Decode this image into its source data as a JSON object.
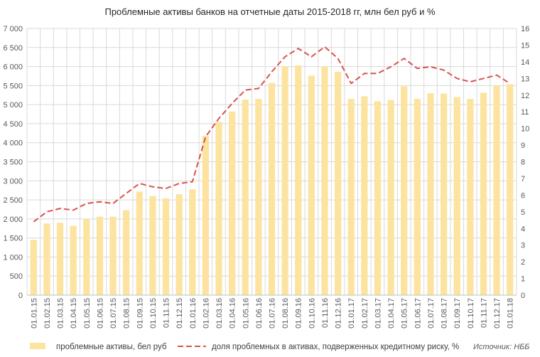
{
  "chart_data": {
    "type": "bar",
    "title": "Проблемные активы банков на отчетные даты 2015-2018 гг, млн бел руб и %",
    "categories": [
      "01.01.15",
      "01.02.15",
      "01.03.15",
      "01.04.15",
      "01.05.15",
      "01.06.15",
      "01.07.15",
      "01.08.15",
      "01.09.15",
      "01.10.15",
      "01.11.15",
      "01.12.15",
      "01.01.16",
      "01.02.16",
      "01.03.16",
      "01.04.16",
      "01.05.16",
      "01.06.16",
      "01.07.16",
      "01.08.16",
      "01.09.16",
      "01.10.16",
      "01.11.16",
      "01.12.16",
      "01.01.17",
      "01.02.17",
      "01.03.17",
      "01.04.17",
      "01.05.17",
      "01.06.17",
      "01.07.17",
      "01.08.17",
      "01.09.17",
      "01.10.17",
      "01.11.17",
      "01.12.17",
      "01.01.18"
    ],
    "y_left": {
      "ylim": [
        0,
        7000
      ],
      "ticks": [
        "0",
        "500",
        "1 000",
        "1 500",
        "2 000",
        "2 500",
        "3 000",
        "3 500",
        "4 000",
        "4 500",
        "5 000",
        "5 500",
        "6 000",
        "6 500",
        "7 000"
      ]
    },
    "y_right": {
      "ylim": [
        0,
        16
      ],
      "ticks": [
        "0",
        "1",
        "2",
        "3",
        "4",
        "5",
        "6",
        "7",
        "8",
        "9",
        "10",
        "11",
        "12",
        "13",
        "14",
        "15",
        "16"
      ]
    },
    "grid": true,
    "legend_position": "bottom",
    "series": [
      {
        "name": "проблемные активы, бел руб",
        "type": "bar",
        "axis": "left",
        "color": "#FCE4A0",
        "values": [
          1450,
          1880,
          1900,
          1820,
          2000,
          2060,
          2060,
          2230,
          2720,
          2600,
          2540,
          2650,
          2780,
          4180,
          4550,
          4820,
          5130,
          5150,
          5570,
          6010,
          6030,
          5760,
          6010,
          5860,
          5150,
          5220,
          5090,
          5120,
          5480,
          5150,
          5300,
          5290,
          5200,
          5150,
          5310,
          5500,
          5540
        ]
      },
      {
        "name": "доля проблемных в активах, подверженных кредитному риску, %",
        "type": "line",
        "axis": "right",
        "color": "#D9534F",
        "dashed": true,
        "values": [
          4.4,
          5.0,
          5.2,
          5.1,
          5.5,
          5.6,
          5.5,
          6.1,
          6.7,
          6.5,
          6.4,
          6.7,
          6.8,
          9.5,
          10.6,
          11.5,
          12.3,
          12.4,
          13.4,
          14.3,
          14.8,
          14.3,
          14.9,
          14.2,
          12.7,
          13.3,
          13.3,
          13.7,
          14.2,
          13.6,
          13.7,
          13.5,
          13.0,
          12.8,
          13.0,
          13.2,
          12.7
        ]
      }
    ],
    "source_note": "Источник: НББ"
  }
}
